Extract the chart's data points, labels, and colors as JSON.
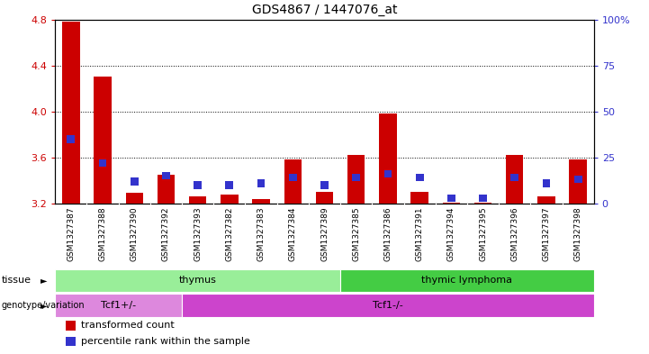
{
  "title": "GDS4867 / 1447076_at",
  "samples": [
    "GSM1327387",
    "GSM1327388",
    "GSM1327390",
    "GSM1327392",
    "GSM1327393",
    "GSM1327382",
    "GSM1327383",
    "GSM1327384",
    "GSM1327389",
    "GSM1327385",
    "GSM1327386",
    "GSM1327391",
    "GSM1327394",
    "GSM1327395",
    "GSM1327396",
    "GSM1327397",
    "GSM1327398"
  ],
  "transformed_count": [
    4.78,
    4.3,
    3.29,
    3.45,
    3.26,
    3.28,
    3.24,
    3.58,
    3.3,
    3.62,
    3.98,
    3.3,
    3.21,
    3.21,
    3.62,
    3.26,
    3.58
  ],
  "percentile_rank": [
    35,
    22,
    12,
    15,
    10,
    10,
    11,
    14,
    10,
    14,
    16,
    14,
    3,
    3,
    14,
    11,
    13
  ],
  "ymin": 3.2,
  "ymax": 4.8,
  "yticks": [
    3.2,
    3.6,
    4.0,
    4.4,
    4.8
  ],
  "right_yticks": [
    0,
    25,
    50,
    75,
    100
  ],
  "right_ytick_labels": [
    "0",
    "25",
    "50",
    "75",
    "100%"
  ],
  "bar_color_red": "#cc0000",
  "bar_color_blue": "#3333cc",
  "background_color": "#ffffff",
  "xticklabel_bg": "#d8d8d8",
  "tissue_groups": [
    {
      "label": "thymus",
      "start": 0,
      "end": 9,
      "color": "#99ee99"
    },
    {
      "label": "thymic lymphoma",
      "start": 9,
      "end": 17,
      "color": "#44cc44"
    }
  ],
  "genotype_groups": [
    {
      "label": "Tcf1+/-",
      "start": 0,
      "end": 4,
      "color": "#dd88dd"
    },
    {
      "label": "Tcf1-/-",
      "start": 4,
      "end": 17,
      "color": "#cc44cc"
    }
  ],
  "tissue_row_label": "tissue",
  "genotype_row_label": "genotype/variation",
  "legend_items": [
    {
      "label": "transformed count",
      "color": "#cc0000"
    },
    {
      "label": "percentile rank within the sample",
      "color": "#3333cc"
    }
  ],
  "bar_width": 0.55,
  "blue_bar_width": 0.25,
  "tick_label_color_left": "#cc0000",
  "tick_label_color_right": "#3333cc"
}
